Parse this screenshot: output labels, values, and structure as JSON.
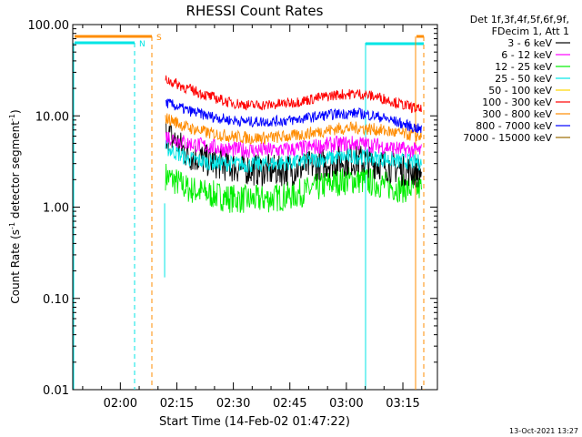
{
  "chart_data": {
    "type": "line",
    "title": "RHESSI Count Rates",
    "xlabel": "Start Time (14-Feb-02 01:47:22)",
    "ylabel_pre": "Count Rate (s",
    "ylabel_sup": "-1",
    "ylabel_mid": " detector segment",
    "ylabel_sup2": "-1",
    "ylabel_post": ")",
    "yscale": "log",
    "ylim": [
      0.01,
      100
    ],
    "xlim": [
      "01:47:22",
      "03:24:10"
    ],
    "x_ticks": [
      "02:00",
      "02:15",
      "02:30",
      "02:45",
      "03:00",
      "03:15"
    ],
    "y_ticks": [
      "0.01",
      "0.10",
      "1.00",
      "10.00",
      "100.00"
    ],
    "legend_header": [
      "Det 1f,3f,4f,5f,6f,9f,",
      "FDecim 1, Att 1"
    ],
    "series": [
      {
        "name": "3 - 6 keV",
        "color": "#000000",
        "x_start": "02:12",
        "x_end": "03:20",
        "values": [
          6.5,
          3.8,
          3.2,
          2.8,
          2.6,
          2.5,
          2.6,
          2.9,
          3.2,
          3.3,
          3.0,
          2.6,
          2.4
        ]
      },
      {
        "name": "6 - 12 keV",
        "color": "#ff00ff",
        "x_start": "02:12",
        "x_end": "03:20",
        "values": [
          6.0,
          5.0,
          4.6,
          4.3,
          4.2,
          4.2,
          4.3,
          4.6,
          4.9,
          5.0,
          4.7,
          4.3,
          4.1
        ]
      },
      {
        "name": "12 - 25 keV",
        "color": "#00ee00",
        "x_start": "02:12",
        "x_end": "03:20",
        "values": [
          2.2,
          1.6,
          1.4,
          1.25,
          1.2,
          1.25,
          1.35,
          1.6,
          1.9,
          2.0,
          1.8,
          1.6,
          1.6
        ]
      },
      {
        "name": "25 - 50 keV",
        "color": "#00e5e5",
        "x_start": "02:12",
        "x_end": "03:20",
        "values": [
          4.5,
          3.4,
          3.1,
          3.0,
          2.9,
          3.0,
          3.1,
          3.3,
          3.5,
          3.6,
          3.4,
          3.2,
          3.1
        ]
      },
      {
        "name": "50 - 100 keV",
        "color": "#ffd700",
        "x_start": "02:12",
        "x_end": "03:20",
        "values": []
      },
      {
        "name": "100 - 300 keV",
        "color": "#ff0000",
        "x_start": "02:12",
        "x_end": "03:20",
        "values": [
          25,
          20,
          16.5,
          14,
          13,
          13.2,
          14,
          15.5,
          17,
          17.5,
          16,
          13.5,
          11.5
        ]
      },
      {
        "name": "300 - 800 keV",
        "color": "#ff8c00",
        "x_start": "02:12",
        "x_end": "03:20",
        "values": [
          9.5,
          7.5,
          6.5,
          6.0,
          5.7,
          5.8,
          6.0,
          6.6,
          7.2,
          7.4,
          7.0,
          6.4,
          6.0
        ]
      },
      {
        "name": "800 - 7000 keV",
        "color": "#0000ff",
        "x_start": "02:12",
        "x_end": "03:20",
        "values": [
          14,
          11.5,
          10,
          9.0,
          8.6,
          8.7,
          9.0,
          9.8,
          10.5,
          10.7,
          9.8,
          8.3,
          7.0
        ]
      },
      {
        "name": "7000 - 15000 keV",
        "color": "#9b6a00",
        "x_start": "02:12",
        "x_end": "03:20",
        "values": []
      }
    ],
    "annotations": {
      "night_label": "N",
      "saa_label": "S"
    },
    "timestamp": "13-Oct-2021 13:27"
  }
}
